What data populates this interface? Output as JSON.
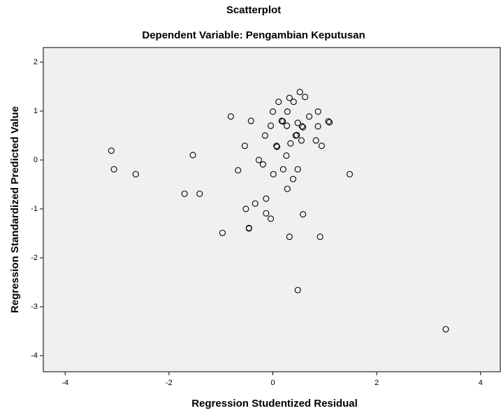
{
  "chart_data": {
    "type": "scatter",
    "title": "Scatterplot",
    "subtitle": "Dependent Variable: Pengambian Keputusan",
    "xlabel": "Regression Studentized Residual",
    "ylabel": "Regression Standardized Predicted Value",
    "x": [
      -3.11,
      -3.06,
      -2.64,
      -1.7,
      -1.41,
      -1.54,
      -0.81,
      -0.97,
      -0.67,
      -0.54,
      -0.42,
      -0.52,
      -0.46,
      -0.46,
      -0.34,
      -0.27,
      -0.19,
      -0.15,
      -0.13,
      -0.13,
      -0.04,
      -0.04,
      0.0,
      0.01,
      0.07,
      0.08,
      0.11,
      0.17,
      0.19,
      0.2,
      0.26,
      0.27,
      0.28,
      0.28,
      0.32,
      0.34,
      0.32,
      0.4,
      0.39,
      0.44,
      0.46,
      0.48,
      0.48,
      0.48,
      0.52,
      0.55,
      0.56,
      0.58,
      0.58,
      0.62,
      0.7,
      0.83,
      0.87,
      0.87,
      0.91,
      0.94,
      1.07,
      1.09,
      1.48,
      3.33
    ],
    "values": [
      0.19,
      -0.19,
      -0.29,
      -0.69,
      -0.69,
      0.1,
      0.89,
      -1.49,
      -0.21,
      0.29,
      0.8,
      -1.0,
      -1.39,
      -1.4,
      -0.89,
      0.0,
      -0.09,
      0.5,
      -0.79,
      -1.09,
      -1.2,
      0.7,
      0.99,
      -0.29,
      0.29,
      0.27,
      1.19,
      0.8,
      0.79,
      -0.19,
      0.09,
      0.7,
      0.99,
      -0.59,
      1.27,
      0.34,
      -1.57,
      1.19,
      -0.39,
      0.5,
      0.51,
      0.76,
      -0.19,
      -2.66,
      1.39,
      0.4,
      0.69,
      0.67,
      -1.11,
      1.29,
      0.89,
      0.4,
      0.69,
      0.99,
      -1.57,
      0.29,
      0.79,
      0.77,
      -0.29,
      -3.46
    ],
    "color": "#000000",
    "xlim": [
      -4.42,
      4.38
    ],
    "ylim": [
      -4.33,
      2.3
    ],
    "xticks": [
      -4,
      -2,
      0,
      2,
      4
    ],
    "yticks": [
      -4,
      -3,
      -2,
      -1,
      0,
      1,
      2
    ]
  }
}
